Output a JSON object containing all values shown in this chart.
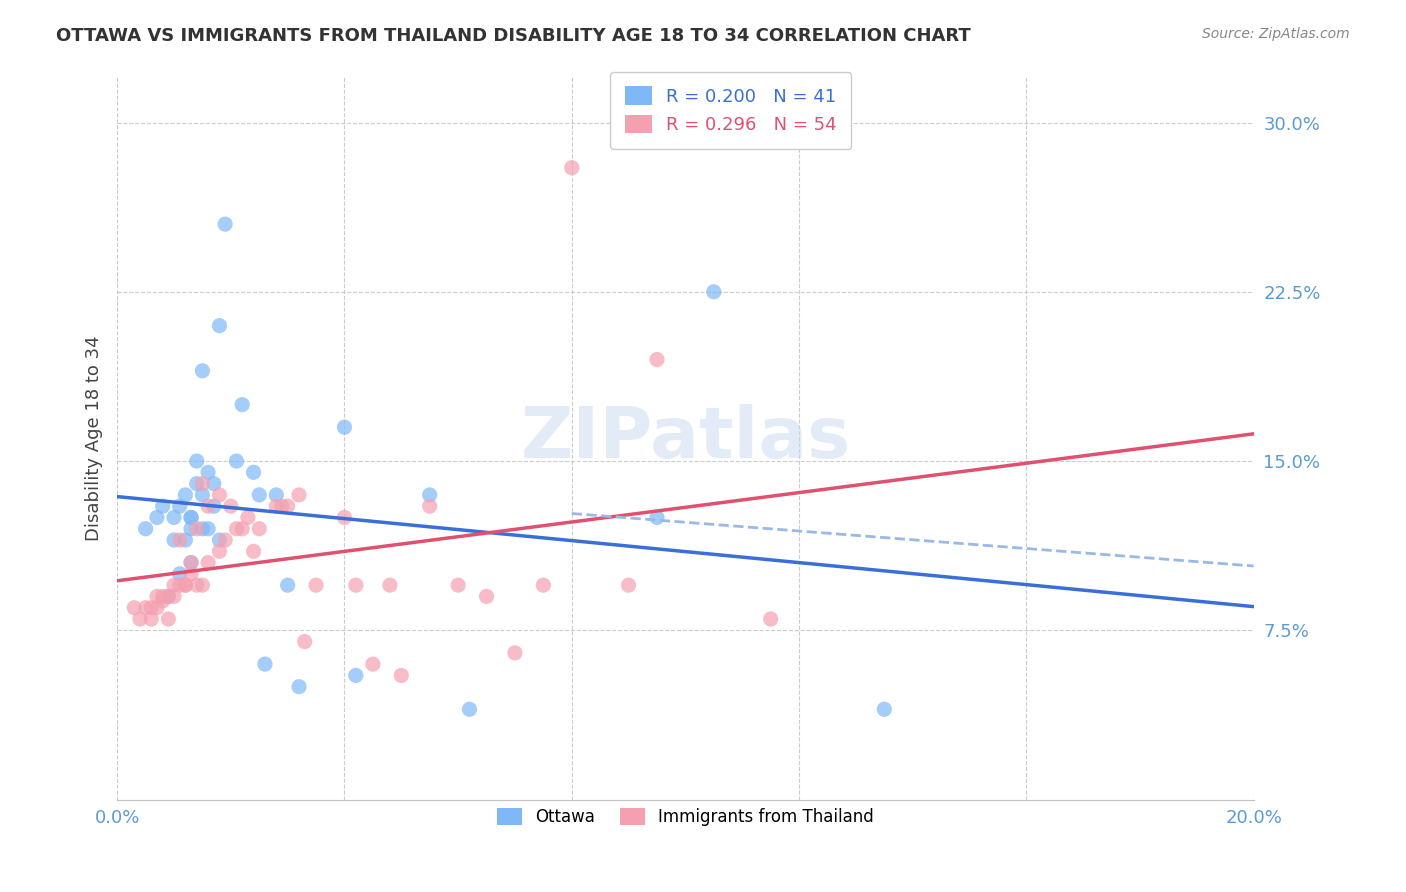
{
  "title": "OTTAWA VS IMMIGRANTS FROM THAILAND DISABILITY AGE 18 TO 34 CORRELATION CHART",
  "source": "Source: ZipAtlas.com",
  "ylabel": "Disability Age 18 to 34",
  "xlim": [
    0.0,
    0.2
  ],
  "ylim": [
    0.0,
    0.32
  ],
  "yticks": [
    0.075,
    0.15,
    0.225,
    0.3
  ],
  "ytick_labels": [
    "7.5%",
    "15.0%",
    "22.5%",
    "30.0%"
  ],
  "xticks": [
    0.0,
    0.04,
    0.08,
    0.12,
    0.16,
    0.2
  ],
  "xtick_labels": [
    "0.0%",
    "",
    "",
    "",
    "",
    "20.0%"
  ],
  "ottawa_color": "#7EB8F7",
  "thailand_color": "#F4A0B0",
  "trend_blue": "#3A6FD8",
  "trend_pink": "#E05070",
  "trend_dash": "#9AB8E8",
  "axis_label_color": "#5B9BD5",
  "watermark": "ZIPatlas",
  "ottawa_x": [
    0.005,
    0.007,
    0.008,
    0.009,
    0.01,
    0.01,
    0.011,
    0.011,
    0.012,
    0.012,
    0.013,
    0.013,
    0.013,
    0.013,
    0.014,
    0.014,
    0.015,
    0.015,
    0.015,
    0.016,
    0.016,
    0.017,
    0.017,
    0.018,
    0.018,
    0.019,
    0.021,
    0.022,
    0.024,
    0.025,
    0.026,
    0.028,
    0.03,
    0.032,
    0.04,
    0.042,
    0.055,
    0.062,
    0.095,
    0.105,
    0.135
  ],
  "ottawa_y": [
    0.12,
    0.125,
    0.13,
    0.09,
    0.125,
    0.115,
    0.13,
    0.1,
    0.135,
    0.115,
    0.125,
    0.125,
    0.12,
    0.105,
    0.15,
    0.14,
    0.19,
    0.135,
    0.12,
    0.12,
    0.145,
    0.14,
    0.13,
    0.115,
    0.21,
    0.255,
    0.15,
    0.175,
    0.145,
    0.135,
    0.06,
    0.135,
    0.095,
    0.05,
    0.165,
    0.055,
    0.135,
    0.04,
    0.125,
    0.225,
    0.04
  ],
  "thailand_x": [
    0.003,
    0.004,
    0.005,
    0.006,
    0.006,
    0.007,
    0.007,
    0.008,
    0.008,
    0.009,
    0.009,
    0.01,
    0.01,
    0.011,
    0.011,
    0.012,
    0.012,
    0.013,
    0.013,
    0.014,
    0.014,
    0.015,
    0.015,
    0.016,
    0.016,
    0.018,
    0.018,
    0.019,
    0.02,
    0.021,
    0.022,
    0.023,
    0.024,
    0.025,
    0.028,
    0.029,
    0.03,
    0.032,
    0.033,
    0.035,
    0.04,
    0.042,
    0.045,
    0.048,
    0.05,
    0.055,
    0.06,
    0.065,
    0.07,
    0.075,
    0.08,
    0.09,
    0.095,
    0.115
  ],
  "thailand_y": [
    0.085,
    0.08,
    0.085,
    0.08,
    0.085,
    0.085,
    0.09,
    0.088,
    0.09,
    0.08,
    0.09,
    0.09,
    0.095,
    0.095,
    0.115,
    0.095,
    0.095,
    0.1,
    0.105,
    0.095,
    0.12,
    0.095,
    0.14,
    0.105,
    0.13,
    0.11,
    0.135,
    0.115,
    0.13,
    0.12,
    0.12,
    0.125,
    0.11,
    0.12,
    0.13,
    0.13,
    0.13,
    0.135,
    0.07,
    0.095,
    0.125,
    0.095,
    0.06,
    0.095,
    0.055,
    0.13,
    0.095,
    0.09,
    0.065,
    0.095,
    0.28,
    0.095,
    0.195,
    0.08
  ]
}
